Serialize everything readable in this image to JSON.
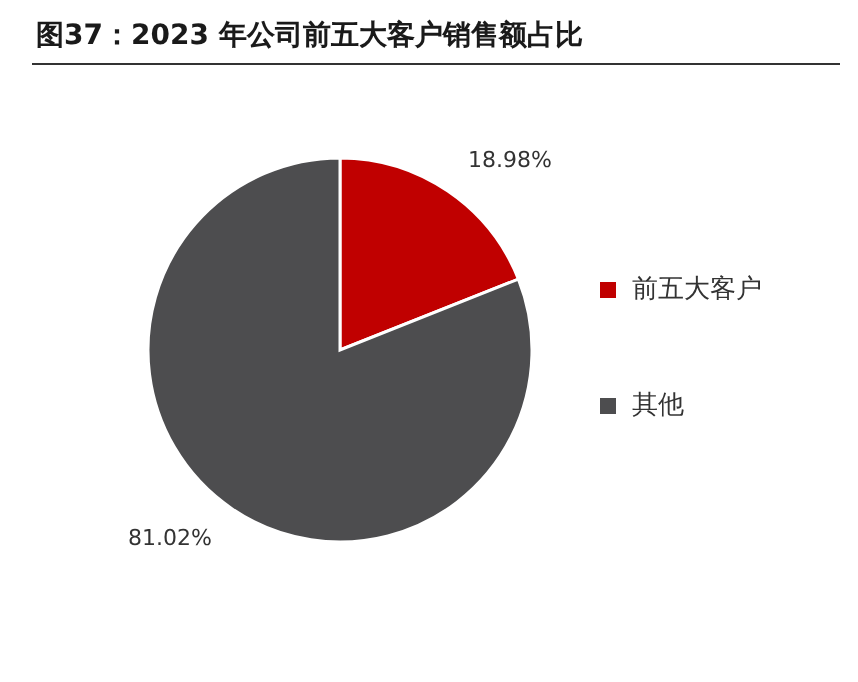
{
  "chart_data": {
    "type": "pie",
    "title": "图37：2023 年公司前五大客户销售额占比",
    "categories": [
      "前五大客户",
      "其他"
    ],
    "values": [
      18.98,
      81.02
    ],
    "colors": [
      "#c00000",
      "#4d4d4f"
    ],
    "value_labels": [
      "18.98%",
      "81.02%"
    ],
    "legend": "right"
  }
}
